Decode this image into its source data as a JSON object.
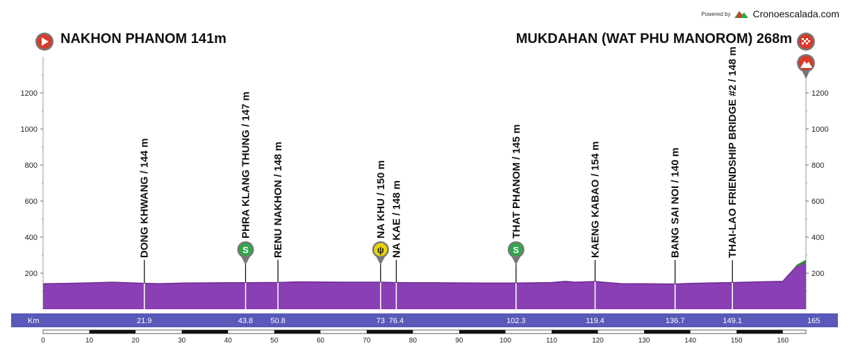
{
  "branding": {
    "powered_by": "Powered by",
    "site": "Cronoescalada.com"
  },
  "start": {
    "label": "NAKHON PHANOM 141m"
  },
  "finish": {
    "label": "MUKDAHAN (WAT PHU MANOROM) 268m"
  },
  "colors": {
    "profile_fill": "#8a3fb5",
    "profile_top": "#6b2a8f",
    "km_bar": "#5859b8",
    "final_climb": "#2e8b2e",
    "marker_red": "#d93a2b",
    "sprint_green": "#2fa64a",
    "feed_yellow": "#e8d400",
    "marker_grey": "#777777"
  },
  "chart_data": {
    "type": "area",
    "title": "",
    "xlabel": "",
    "ylabel": "",
    "xlim": [
      0,
      165
    ],
    "ylim": [
      0,
      1400
    ],
    "y_ticks": [
      200,
      400,
      600,
      800,
      1000,
      1200
    ],
    "x_ticks": [
      0,
      10,
      20,
      30,
      40,
      50,
      60,
      70,
      80,
      90,
      100,
      110,
      120,
      130,
      140,
      150,
      160
    ],
    "km_axis_label": "Km",
    "profile": {
      "x": [
        0,
        5,
        10,
        15,
        21.9,
        25,
        30,
        35,
        40,
        43.8,
        47,
        50.8,
        55,
        60,
        65,
        70,
        73,
        76.4,
        80,
        85,
        90,
        95,
        100,
        102.3,
        105,
        110,
        113,
        115,
        119.4,
        122,
        125,
        130,
        136.7,
        140,
        145,
        149.1,
        152,
        155,
        160,
        163,
        165
      ],
      "y": [
        141,
        143,
        146,
        150,
        144,
        142,
        145,
        146,
        147,
        147,
        148,
        148,
        152,
        151,
        150,
        150,
        150,
        148,
        147,
        147,
        146,
        145,
        145,
        145,
        146,
        148,
        155,
        150,
        154,
        148,
        142,
        141,
        140,
        143,
        146,
        148,
        150,
        152,
        155,
        240,
        268
      ]
    },
    "waypoints": [
      {
        "km": 21.9,
        "km_label": "21.9",
        "label": "DONG KHWANG / 144 m",
        "icon": ""
      },
      {
        "km": 43.8,
        "km_label": "43.8",
        "label": "PHRA KLANG THUNG / 147 m",
        "icon": "sprint"
      },
      {
        "km": 50.8,
        "km_label": "50.8",
        "label": "RENU NAKHON / 148 m",
        "icon": ""
      },
      {
        "km": 73,
        "km_label": "73",
        "label": "NA KHU / 150 m",
        "icon": "feed"
      },
      {
        "km": 76.4,
        "km_label": "76.4",
        "label": "NA KAE / 148 m",
        "icon": ""
      },
      {
        "km": 102.3,
        "km_label": "102.3",
        "label": "THAT PHANOM / 145 m",
        "icon": "sprint"
      },
      {
        "km": 119.4,
        "km_label": "119.4",
        "label": "KAENG KABAO / 154 m",
        "icon": ""
      },
      {
        "km": 136.7,
        "km_label": "136.7",
        "label": "BANG SAI NOI / 140 m",
        "icon": ""
      },
      {
        "km": 149.1,
        "km_label": "149.1",
        "label": "THAI-LAO FRIENDSHIP BRIDGE #2 / 148 m",
        "icon": ""
      }
    ],
    "final_km_label": "165",
    "sprint_icon_text": "S",
    "feed_icon_text": "ψ"
  }
}
